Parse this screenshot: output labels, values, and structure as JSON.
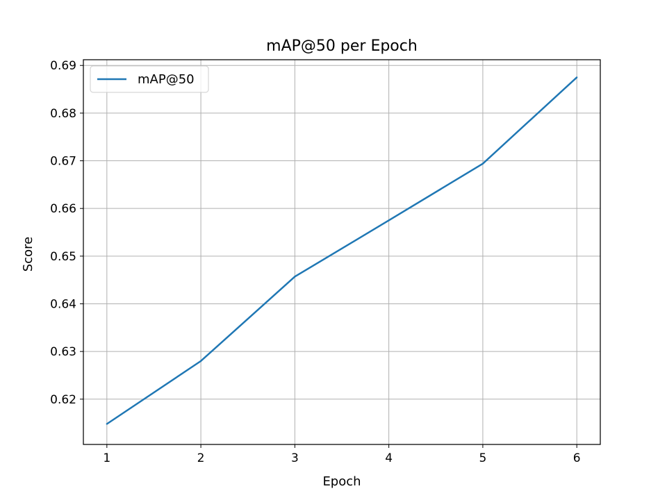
{
  "chart_data": {
    "type": "line",
    "title": "mAP@50 per Epoch",
    "xlabel": "Epoch",
    "ylabel": "Score",
    "x": [
      1,
      2,
      3,
      4,
      5,
      6
    ],
    "series": [
      {
        "name": "mAP@50",
        "values": [
          0.6148,
          0.628,
          0.6457,
          0.6575,
          0.6694,
          0.6875
        ],
        "color": "#1f77b4"
      }
    ],
    "xlim": [
      0.75,
      6.25
    ],
    "ylim": [
      0.6105,
      0.6912
    ],
    "xticks": [
      "1",
      "2",
      "3",
      "4",
      "5",
      "6"
    ],
    "yticks": [
      "0.62",
      "0.63",
      "0.64",
      "0.65",
      "0.66",
      "0.67",
      "0.68",
      "0.69"
    ],
    "grid": true,
    "legend_position": "top-left"
  }
}
